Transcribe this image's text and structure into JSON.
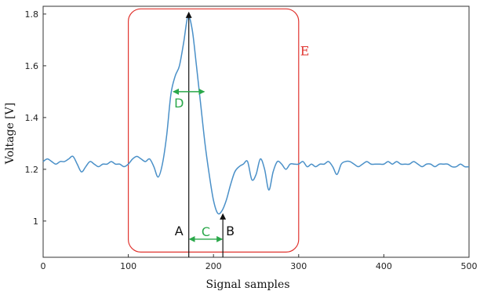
{
  "chart_data": {
    "type": "line",
    "xlabel": "Signal samples",
    "ylabel": "Voltage [V]",
    "xlim": [
      0,
      500
    ],
    "ylim": [
      0.86,
      1.83
    ],
    "xticks": [
      "0",
      "100",
      "200",
      "300",
      "400",
      "500"
    ],
    "yticks": [
      "1",
      "1.2",
      "1.4",
      "1.6",
      "1.8"
    ],
    "grid": false,
    "series_color": "#4a90c8",
    "series": [
      {
        "x": [
          0,
          5,
          10,
          15,
          20,
          25,
          30,
          35,
          40,
          45,
          50,
          55,
          60,
          65,
          70,
          75,
          80,
          85,
          90,
          95,
          100,
          105,
          110,
          115,
          120,
          125,
          130,
          135,
          140,
          145,
          150,
          155,
          160,
          165,
          170,
          175,
          180,
          185,
          190,
          195,
          200,
          205,
          210,
          215,
          220,
          225,
          230,
          235,
          240,
          245,
          250,
          255,
          260,
          265,
          270,
          275,
          280,
          285,
          290,
          295,
          300,
          305,
          310,
          315,
          320,
          325,
          330,
          335,
          340,
          345,
          350,
          355,
          360,
          365,
          370,
          375,
          380,
          385,
          390,
          395,
          400,
          405,
          410,
          415,
          420,
          425,
          430,
          435,
          440,
          445,
          450,
          455,
          460,
          465,
          470,
          475,
          480,
          485,
          490,
          495,
          500
        ],
        "y": [
          1.23,
          1.24,
          1.23,
          1.22,
          1.23,
          1.23,
          1.24,
          1.25,
          1.22,
          1.19,
          1.21,
          1.23,
          1.22,
          1.21,
          1.22,
          1.22,
          1.23,
          1.22,
          1.22,
          1.21,
          1.22,
          1.24,
          1.25,
          1.24,
          1.23,
          1.24,
          1.21,
          1.17,
          1.22,
          1.33,
          1.49,
          1.56,
          1.6,
          1.69,
          1.79,
          1.74,
          1.6,
          1.45,
          1.3,
          1.18,
          1.08,
          1.03,
          1.04,
          1.08,
          1.14,
          1.19,
          1.21,
          1.22,
          1.23,
          1.16,
          1.18,
          1.24,
          1.2,
          1.12,
          1.19,
          1.23,
          1.22,
          1.2,
          1.22,
          1.22,
          1.22,
          1.23,
          1.21,
          1.22,
          1.21,
          1.22,
          1.22,
          1.23,
          1.21,
          1.18,
          1.22,
          1.23,
          1.23,
          1.22,
          1.21,
          1.22,
          1.23,
          1.22,
          1.22,
          1.22,
          1.22,
          1.23,
          1.22,
          1.23,
          1.22,
          1.22,
          1.22,
          1.23,
          1.22,
          1.21,
          1.22,
          1.22,
          1.21,
          1.22,
          1.22,
          1.22,
          1.21,
          1.21,
          1.22,
          1.21,
          1.21
        ]
      }
    ],
    "annotations": {
      "peak_a": {
        "label": "A",
        "x": 171,
        "y": 1.8
      },
      "trough_b": {
        "label": "B",
        "x": 211,
        "y": 1.03
      },
      "interval_c": {
        "label": "C",
        "x_start": 171,
        "x_end": 211,
        "y": 0.93,
        "color": "#2aa84a"
      },
      "width_d": {
        "label": "D",
        "x_start": 152,
        "x_end": 190,
        "y": 1.5,
        "color": "#2aa84a"
      },
      "region_e": {
        "label": "E",
        "x_start": 100,
        "x_end": 300,
        "y_start": 0.88,
        "y_end": 1.82,
        "color": "#e0342f"
      }
    }
  }
}
